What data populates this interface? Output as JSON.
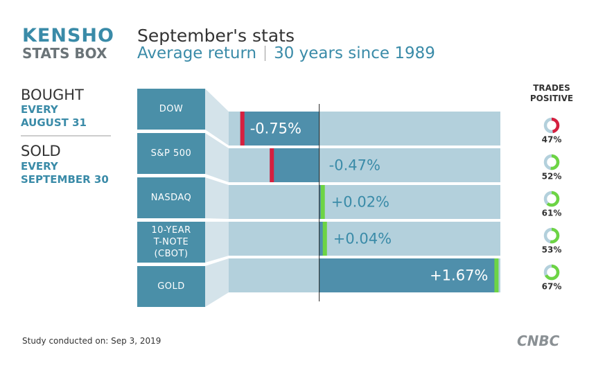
{
  "brand": {
    "line1": "KENSHO",
    "line2": "STATS BOX"
  },
  "left_panel": {
    "bought": "BOUGHT",
    "bought_when": [
      "EVERY",
      "AUGUST 31"
    ],
    "sold": "SOLD",
    "sold_when": [
      "EVERY",
      "SEPTEMBER 30"
    ]
  },
  "footer": "Study conducted on: Sep 3, 2019",
  "logo": "CNBC",
  "chart_data": {
    "type": "bar",
    "orientation": "horizontal",
    "title": "September's stats",
    "subtitle": [
      "Average return",
      "30 years since 1989"
    ],
    "categories": [
      "DOW",
      "S&P 500",
      "NASDAQ",
      "10-YEAR\nT-NOTE\n(CBOT)",
      "GOLD"
    ],
    "values": [
      -0.75,
      -0.47,
      0.02,
      0.04,
      1.67
    ],
    "value_labels": [
      "-0.75%",
      "-0.47%",
      "+0.02%",
      "+0.04%",
      "+1.67%"
    ],
    "xlim": [
      -0.86,
      1.72
    ],
    "color": "#4f8fab",
    "negative_marker_color": "#d6203f",
    "positive_marker_color": "#6dd444",
    "trades_positive": {
      "title": "TRADES\nPOSITIVE",
      "values": [
        47,
        52,
        61,
        53,
        67
      ],
      "value_labels": [
        "47%",
        "52%",
        "61%",
        "53%",
        "67%"
      ]
    }
  }
}
